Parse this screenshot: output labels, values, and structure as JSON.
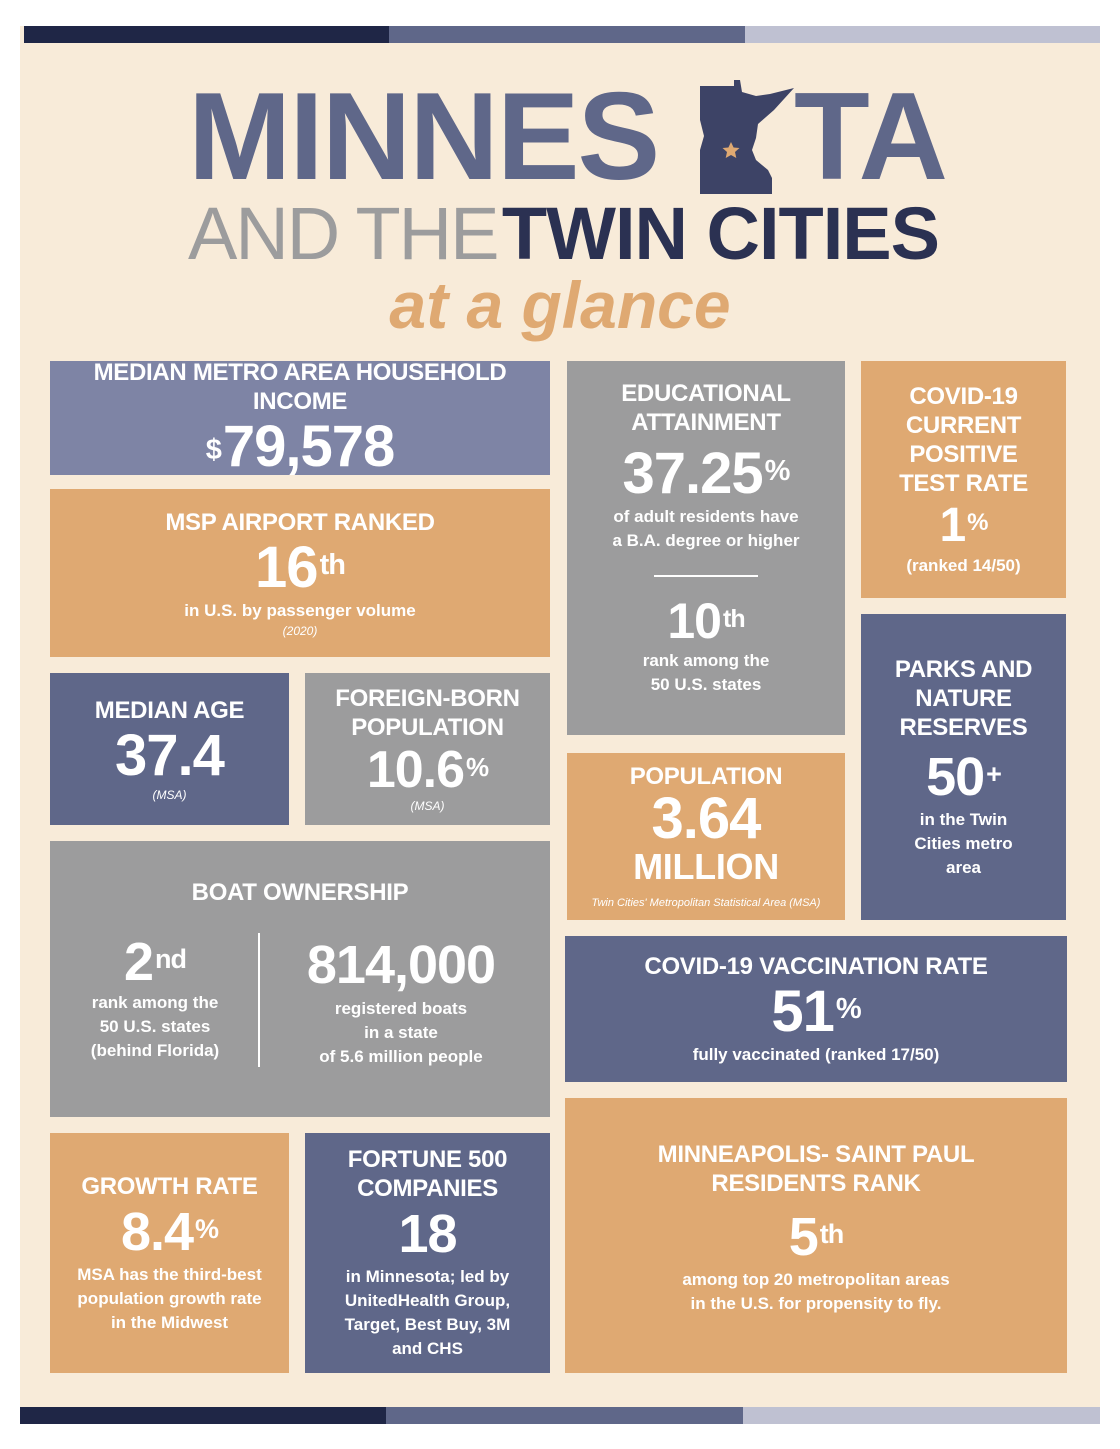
{
  "colors": {
    "navy": "#1f2646",
    "slate": "#5f6789",
    "lavender": "#bfc1d2",
    "orange": "#dfa972",
    "gray": "#9c9c9d",
    "cream": "#f8ebd9"
  },
  "header": {
    "title_part1": "MINNES",
    "title_part2": "TA",
    "subtitle_light": "AND THE",
    "subtitle_bold": "TWIN CITIES",
    "tagline": "at a glance",
    "state_icon": "minnesota-state-map-icon"
  },
  "tiles": {
    "income": {
      "heading": "MEDIAN METRO AREA HOUSEHOLD INCOME",
      "currency": "$",
      "value": "79,578"
    },
    "airport": {
      "heading": "MSP AIRPORT RANKED",
      "value": "16",
      "suffix": "th",
      "desc": "in U.S. by passenger volume",
      "note": "(2020)"
    },
    "education": {
      "heading": "EDUCATIONAL ATTAINMENT",
      "value": "37.25",
      "suffix": "%",
      "desc_line1": "of adult residents have",
      "desc_line2": "a B.A. degree or higher",
      "rank_value": "10",
      "rank_suffix": "th",
      "rank_line1": "rank among the",
      "rank_line2": "50 U.S. states"
    },
    "covid_positive": {
      "heading_line1": "COVID-19",
      "heading_line2": "CURRENT",
      "heading_line3": "POSITIVE",
      "heading_line4": "TEST RATE",
      "value": "1",
      "suffix": "%",
      "desc": "(ranked 14/50)"
    },
    "median_age": {
      "heading": "MEDIAN AGE",
      "value": "37.4",
      "note": "(MSA)"
    },
    "foreign_born": {
      "heading_line1": "FOREIGN-BORN",
      "heading_line2": "POPULATION",
      "value": "10.6",
      "suffix": "%",
      "note": "(MSA)"
    },
    "population": {
      "heading": "POPULATION",
      "value": "3.64",
      "unit": "MILLION",
      "note": "Twin Cities' Metropolitan Statistical Area (MSA)"
    },
    "parks": {
      "heading_line1": "PARKS AND",
      "heading_line2": "NATURE",
      "heading_line3": "RESERVES",
      "value": "50",
      "suffix": "+",
      "desc_line1": "in the Twin",
      "desc_line2": "Cities metro",
      "desc_line3": "area"
    },
    "boats": {
      "heading": "BOAT OWNERSHIP",
      "rank_value": "2",
      "rank_suffix": "nd",
      "rank_line1": "rank among the",
      "rank_line2": "50 U.S. states",
      "rank_line3": "(behind Florida)",
      "count": "814,000",
      "count_line1": "registered boats",
      "count_line2": "in a state",
      "count_line3": "of 5.6 million people"
    },
    "vaccination": {
      "heading": "COVID-19 VACCINATION RATE",
      "value": "51",
      "suffix": "%",
      "desc": "fully vaccinated (ranked 17/50)"
    },
    "growth": {
      "heading": "GROWTH RATE",
      "value": "8.4",
      "suffix": "%",
      "desc_line1": "MSA has the third-best",
      "desc_line2": "population growth rate",
      "desc_line3": "in the Midwest"
    },
    "fortune": {
      "heading_line1": "FORTUNE 500",
      "heading_line2": "COMPANIES",
      "value": "18",
      "desc_line1": "in Minnesota; led by",
      "desc_line2": "UnitedHealth Group,",
      "desc_line3": "Target, Best Buy, 3M",
      "desc_line4": "and CHS"
    },
    "flying": {
      "heading_line1": "MINNEAPOLIS- SAINT PAUL",
      "heading_line2": "RESIDENTS RANK",
      "value": "5",
      "suffix": "th",
      "desc_line1": "among top 20 metropolitan areas",
      "desc_line2": "in the U.S. for propensity to fly."
    }
  }
}
